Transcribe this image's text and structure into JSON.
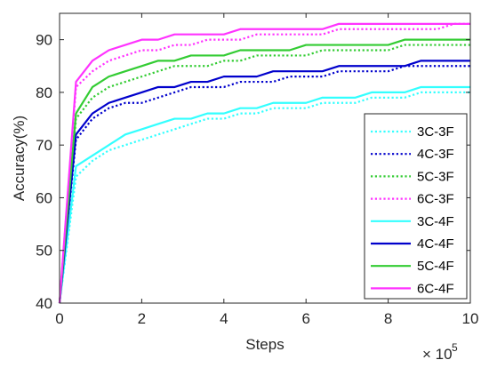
{
  "chart_data": {
    "type": "line",
    "xlabel": "Steps",
    "ylabel": "Accuracy(%)",
    "x_multiplier_label": "× 10",
    "x_multiplier_exponent": "5",
    "xlim": [
      0,
      10
    ],
    "ylim": [
      40,
      95
    ],
    "x_ticks": [
      0,
      2,
      4,
      6,
      8,
      10
    ],
    "y_ticks": [
      40,
      50,
      60,
      70,
      80,
      90
    ],
    "grid": false,
    "legend_position": "lower-right",
    "x": [
      0.0,
      0.4,
      0.8,
      1.2,
      1.6,
      2.0,
      2.4,
      2.8,
      3.2,
      3.6,
      4.0,
      4.4,
      4.8,
      5.2,
      5.6,
      6.0,
      6.4,
      6.8,
      7.2,
      7.6,
      8.0,
      8.4,
      8.8,
      9.2,
      9.6,
      10.0
    ],
    "series": [
      {
        "name": "3C-3F",
        "color": "#33ffff",
        "dash": "dotted",
        "values": [
          40,
          64,
          67,
          69,
          70,
          71,
          72,
          73,
          74,
          75,
          75,
          76,
          76,
          77,
          77,
          77,
          78,
          78,
          78,
          79,
          79,
          79,
          80,
          80,
          80,
          80
        ]
      },
      {
        "name": "4C-3F",
        "color": "#0000cc",
        "dash": "dotted",
        "values": [
          40,
          71,
          75,
          77,
          78,
          78,
          79,
          80,
          81,
          81,
          81,
          82,
          82,
          82,
          83,
          83,
          83,
          84,
          84,
          84,
          84,
          85,
          85,
          85,
          85,
          85
        ]
      },
      {
        "name": "5C-3F",
        "color": "#33cc33",
        "dash": "dotted",
        "values": [
          40,
          75,
          79,
          81,
          82,
          83,
          84,
          85,
          85,
          85,
          86,
          86,
          87,
          87,
          87,
          87,
          88,
          88,
          88,
          88,
          88,
          89,
          89,
          89,
          89,
          89
        ]
      },
      {
        "name": "6C-3F",
        "color": "#ff33ff",
        "dash": "dotted",
        "values": [
          40,
          81,
          84,
          86,
          87,
          88,
          88,
          89,
          89,
          90,
          90,
          90,
          91,
          91,
          91,
          91,
          91,
          92,
          92,
          92,
          92,
          92,
          92,
          92,
          93,
          93
        ]
      },
      {
        "name": "3C-4F",
        "color": "#33ffff",
        "dash": "solid",
        "values": [
          40,
          66,
          68,
          70,
          72,
          73,
          74,
          75,
          75,
          76,
          76,
          77,
          77,
          78,
          78,
          78,
          79,
          79,
          79,
          80,
          80,
          80,
          81,
          81,
          81,
          81
        ]
      },
      {
        "name": "4C-4F",
        "color": "#0000cc",
        "dash": "solid",
        "values": [
          40,
          72,
          76,
          78,
          79,
          80,
          81,
          81,
          82,
          82,
          83,
          83,
          83,
          84,
          84,
          84,
          84,
          85,
          85,
          85,
          85,
          85,
          86,
          86,
          86,
          86
        ]
      },
      {
        "name": "5C-4F",
        "color": "#33cc33",
        "dash": "solid",
        "values": [
          40,
          76,
          81,
          83,
          84,
          85,
          86,
          86,
          87,
          87,
          87,
          88,
          88,
          88,
          88,
          89,
          89,
          89,
          89,
          89,
          89,
          90,
          90,
          90,
          90,
          90
        ]
      },
      {
        "name": "6C-4F",
        "color": "#ff33ff",
        "dash": "solid",
        "values": [
          40,
          82,
          86,
          88,
          89,
          90,
          90,
          91,
          91,
          91,
          91,
          92,
          92,
          92,
          92,
          92,
          92,
          93,
          93,
          93,
          93,
          93,
          93,
          93,
          93,
          93
        ]
      }
    ]
  }
}
